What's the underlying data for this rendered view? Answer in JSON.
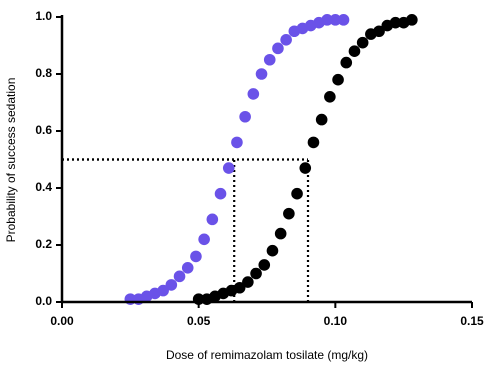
{
  "chart_data": {
    "type": "scatter",
    "x_label": "Dose of remimazolam tosilate (mg/kg)",
    "y_label": "Probability of success sedation",
    "xlim": [
      0,
      0.15
    ],
    "ylim": [
      0,
      1
    ],
    "xticks": [
      {
        "value": 0,
        "label": "0.00"
      },
      {
        "value": 0.05,
        "label": "0.05"
      },
      {
        "value": 0.1,
        "label": "0.10"
      },
      {
        "value": 0.15,
        "label": "0.15"
      }
    ],
    "yticks": [
      {
        "value": 0,
        "label": "0.0"
      },
      0.2,
      0.4,
      0.6,
      0.8,
      {
        "value": 1,
        "label": "1.0"
      }
    ],
    "series": [
      {
        "color": "#6a52e8",
        "x": [
          0.025,
          0.028,
          0.031,
          0.034,
          0.037,
          0.04,
          0.043,
          0.046,
          0.049,
          0.052,
          0.055,
          0.058,
          0.061,
          0.064,
          0.067,
          0.07,
          0.073,
          0.076,
          0.079,
          0.082,
          0.085,
          0.088,
          0.091,
          0.094,
          0.097,
          0.1,
          0.103
        ],
        "values": [
          0.01,
          0.01,
          0.02,
          0.03,
          0.04,
          0.06,
          0.09,
          0.12,
          0.16,
          0.22,
          0.29,
          0.38,
          0.47,
          0.56,
          0.65,
          0.73,
          0.8,
          0.85,
          0.89,
          0.92,
          0.95,
          0.96,
          0.97,
          0.98,
          0.99,
          0.99,
          0.99
        ]
      },
      {
        "color": "#000000",
        "x": [
          0.05,
          0.053,
          0.056,
          0.059,
          0.062,
          0.065,
          0.068,
          0.071,
          0.074,
          0.077,
          0.08,
          0.083,
          0.086,
          0.089,
          0.092,
          0.095,
          0.098,
          0.101,
          0.104,
          0.107,
          0.11,
          0.113,
          0.116,
          0.119,
          0.122,
          0.125,
          0.128
        ],
        "values": [
          0.01,
          0.01,
          0.02,
          0.03,
          0.04,
          0.05,
          0.07,
          0.1,
          0.13,
          0.18,
          0.24,
          0.31,
          0.38,
          0.47,
          0.56,
          0.64,
          0.72,
          0.78,
          0.84,
          0.88,
          0.91,
          0.94,
          0.95,
          0.97,
          0.98,
          0.98,
          0.99
        ]
      }
    ],
    "reference_lines": [
      {
        "x": 0.063,
        "y": 0.5
      },
      {
        "x": 0.09,
        "y": 0.5
      }
    ]
  }
}
